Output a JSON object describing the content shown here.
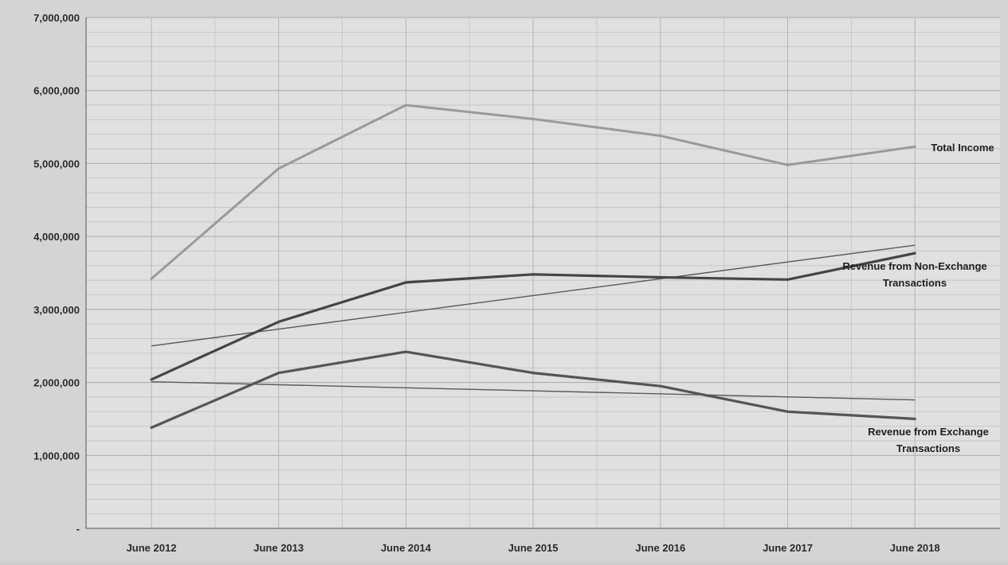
{
  "chart_data": {
    "type": "line",
    "categories": [
      "June 2012",
      "June 2013",
      "June 2014",
      "June 2015",
      "June 2016",
      "June 2017",
      "June 2018"
    ],
    "ylim": [
      0,
      7000000
    ],
    "y_ticks": [
      {
        "value": 0,
        "label": "-"
      },
      {
        "value": 1000000,
        "label": "1,000,000"
      },
      {
        "value": 2000000,
        "label": "2,000,000"
      },
      {
        "value": 3000000,
        "label": "3,000,000"
      },
      {
        "value": 4000000,
        "label": "4,000,000"
      },
      {
        "value": 5000000,
        "label": "5,000,000"
      },
      {
        "value": 6000000,
        "label": "6,000,000"
      },
      {
        "value": 7000000,
        "label": "7,000,000"
      }
    ],
    "grid": true,
    "legend": "inline labels at right end of lines",
    "series": [
      {
        "name": "Total Income",
        "color": "#9a9a9a",
        "values": [
          3420000,
          4930000,
          5800000,
          5610000,
          5380000,
          4980000,
          5230000
        ]
      },
      {
        "name": "Revenue from Non-Exchange Transactions",
        "color": "#454545",
        "values": [
          2040000,
          2830000,
          3370000,
          3480000,
          3440000,
          3410000,
          3770000
        ]
      },
      {
        "name": "Revenue from Exchange Transactions",
        "color": "#555555",
        "values": [
          1380000,
          2130000,
          2420000,
          2130000,
          1950000,
          1600000,
          1500000
        ]
      }
    ],
    "trendlines": [
      {
        "of": "Revenue from Non-Exchange Transactions",
        "color": "#5a5a5a",
        "values": [
          2500000,
          3880000
        ]
      },
      {
        "of": "Revenue from Exchange Transactions",
        "color": "#5a5a5a",
        "values": [
          2010000,
          1760000
        ]
      }
    ],
    "series_labels": [
      {
        "lines": [
          "Total Income"
        ]
      },
      {
        "lines": [
          "Revenue from Non-Exchange",
          "Transactions"
        ]
      },
      {
        "lines": [
          "Revenue from Exchange",
          "Transactions"
        ]
      }
    ]
  }
}
